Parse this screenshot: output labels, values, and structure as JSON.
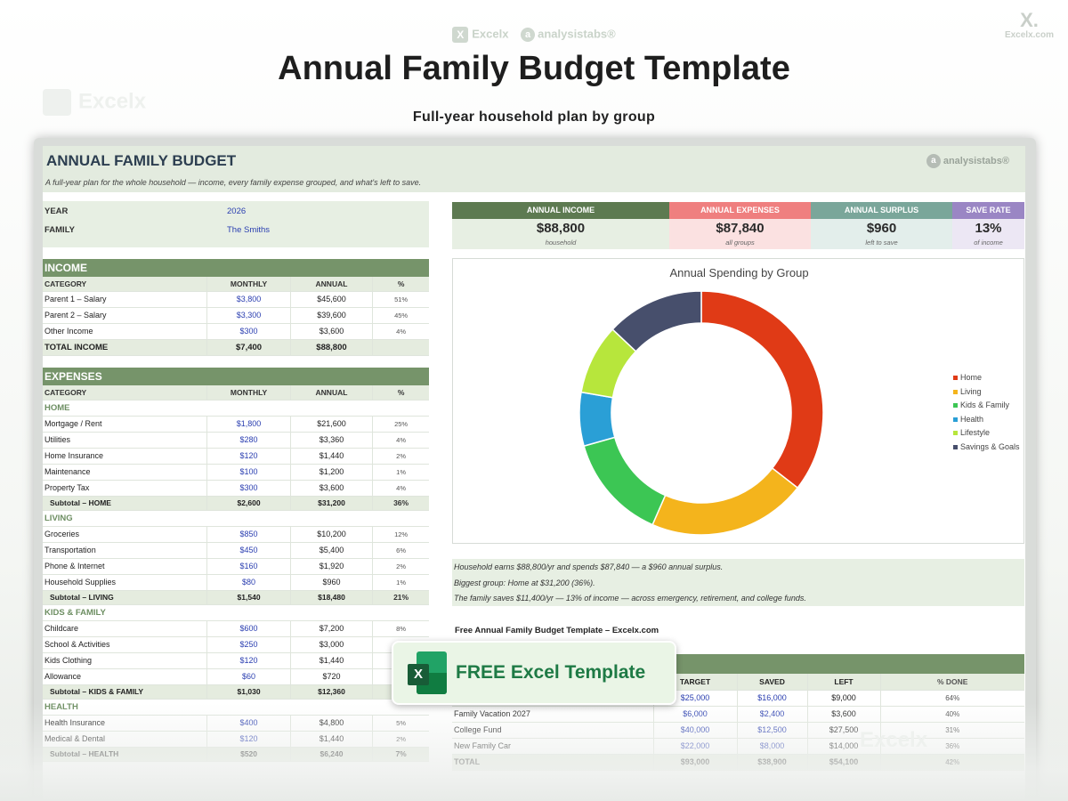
{
  "brand_top": {
    "excelx": "Excelx",
    "analysistabs": "analysistabs®",
    "x_glyph": "X"
  },
  "corner_logo": {
    "mark": "X.",
    "site": "Excelx.com"
  },
  "watermark": "Excelx",
  "title": "Annual Family Budget Template",
  "subtitle": "Full-year household plan by group",
  "sheet": {
    "title": "ANNUAL FAMILY BUDGET",
    "description": "A full-year plan for the whole household — income, every family expense grouped, and what's left to save.",
    "brand": "analysistabs®",
    "info": [
      {
        "label": "YEAR",
        "value": "2026"
      },
      {
        "label": "FAMILY",
        "value": "The Smiths"
      }
    ],
    "income": {
      "heading": "INCOME",
      "columns": [
        "CATEGORY",
        "MONTHLY",
        "ANNUAL",
        "%"
      ],
      "rows": [
        {
          "cat": "Parent 1 – Salary",
          "monthly": "$3,800",
          "annual": "$45,600",
          "pct": "51%"
        },
        {
          "cat": "Parent 2 – Salary",
          "monthly": "$3,300",
          "annual": "$39,600",
          "pct": "45%"
        },
        {
          "cat": "Other Income",
          "monthly": "$300",
          "annual": "$3,600",
          "pct": "4%"
        }
      ],
      "total": {
        "cat": "TOTAL INCOME",
        "monthly": "$7,400",
        "annual": "$88,800",
        "pct": ""
      }
    },
    "expenses": {
      "heading": "EXPENSES",
      "columns": [
        "CATEGORY",
        "MONTHLY",
        "ANNUAL",
        "%"
      ],
      "groups": [
        {
          "name": "HOME",
          "rows": [
            {
              "cat": "Mortgage / Rent",
              "monthly": "$1,800",
              "annual": "$21,600",
              "pct": "25%"
            },
            {
              "cat": "Utilities",
              "monthly": "$280",
              "annual": "$3,360",
              "pct": "4%"
            },
            {
              "cat": "Home Insurance",
              "monthly": "$120",
              "annual": "$1,440",
              "pct": "2%"
            },
            {
              "cat": "Maintenance",
              "monthly": "$100",
              "annual": "$1,200",
              "pct": "1%"
            },
            {
              "cat": "Property Tax",
              "monthly": "$300",
              "annual": "$3,600",
              "pct": "4%"
            }
          ],
          "subtotal": {
            "cat": "Subtotal – HOME",
            "monthly": "$2,600",
            "annual": "$31,200",
            "pct": "36%"
          }
        },
        {
          "name": "LIVING",
          "rows": [
            {
              "cat": "Groceries",
              "monthly": "$850",
              "annual": "$10,200",
              "pct": "12%"
            },
            {
              "cat": "Transportation",
              "monthly": "$450",
              "annual": "$5,400",
              "pct": "6%"
            },
            {
              "cat": "Phone & Internet",
              "monthly": "$160",
              "annual": "$1,920",
              "pct": "2%"
            },
            {
              "cat": "Household Supplies",
              "monthly": "$80",
              "annual": "$960",
              "pct": "1%"
            }
          ],
          "subtotal": {
            "cat": "Subtotal – LIVING",
            "monthly": "$1,540",
            "annual": "$18,480",
            "pct": "21%"
          }
        },
        {
          "name": "KIDS & FAMILY",
          "rows": [
            {
              "cat": "Childcare",
              "monthly": "$600",
              "annual": "$7,200",
              "pct": "8%"
            },
            {
              "cat": "School & Activities",
              "monthly": "$250",
              "annual": "$3,000",
              "pct": ""
            },
            {
              "cat": "Kids Clothing",
              "monthly": "$120",
              "annual": "$1,440",
              "pct": ""
            },
            {
              "cat": "Allowance",
              "monthly": "$60",
              "annual": "$720",
              "pct": ""
            }
          ],
          "subtotal": {
            "cat": "Subtotal – KIDS & FAMILY",
            "monthly": "$1,030",
            "annual": "$12,360",
            "pct": ""
          }
        },
        {
          "name": "HEALTH",
          "rows": [
            {
              "cat": "Health Insurance",
              "monthly": "$400",
              "annual": "$4,800",
              "pct": "5%"
            },
            {
              "cat": "Medical & Dental",
              "monthly": "$120",
              "annual": "$1,440",
              "pct": "2%"
            }
          ],
          "subtotal": {
            "cat": "Subtotal – HEALTH",
            "monthly": "$520",
            "annual": "$6,240",
            "pct": "7%"
          }
        }
      ]
    },
    "kpis": [
      {
        "label": "ANNUAL INCOME",
        "value": "$88,800",
        "sub": "household",
        "head_color": "#5d7a51",
        "body_color": "#e7efe3"
      },
      {
        "label": "ANNUAL EXPENSES",
        "value": "$87,840",
        "sub": "all groups",
        "head_color": "#ef7f7f",
        "body_color": "#fbe1e1"
      },
      {
        "label": "ANNUAL SURPLUS",
        "value": "$960",
        "sub": "left to save",
        "head_color": "#7aa69a",
        "body_color": "#e3eeeb"
      },
      {
        "label": "SAVE RATE",
        "value": "13%",
        "sub": "of income",
        "head_color": "#9a86c4",
        "body_color": "#ece7f4"
      }
    ],
    "insights": [
      "Household earns $88,800/yr and spends $87,840 — a $960 annual surplus.",
      "Biggest group: Home at $31,200 (36%).",
      "The family saves $11,400/yr — 13% of income — across emergency, retirement, and college funds."
    ],
    "promo_line": "Free Annual Family Budget Template – Excelx.com",
    "goals": {
      "columns": [
        "",
        "TARGET",
        "SAVED",
        "LEFT",
        "% DONE"
      ],
      "rows": [
        {
          "goal": "",
          "target": "$25,000",
          "saved": "$16,000",
          "left": "$9,000",
          "pct": "64%"
        },
        {
          "goal": "Family Vacation 2027",
          "target": "$6,000",
          "saved": "$2,400",
          "left": "$3,600",
          "pct": "40%"
        },
        {
          "goal": "College Fund",
          "target": "$40,000",
          "saved": "$12,500",
          "left": "$27,500",
          "pct": "31%"
        },
        {
          "goal": "New Family Car",
          "target": "$22,000",
          "saved": "$8,000",
          "left": "$14,000",
          "pct": "36%"
        }
      ],
      "total": {
        "goal": "TOTAL",
        "target": "$93,000",
        "saved": "$38,900",
        "left": "$54,100",
        "pct": "42%"
      }
    }
  },
  "badge": {
    "label": "FREE Excel Template",
    "icon_letter": "X"
  },
  "chart_data": {
    "type": "pie",
    "title": "Annual Spending by Group",
    "categories": [
      "Home",
      "Living",
      "Kids & Family",
      "Health",
      "Lifestyle",
      "Savings & Goals"
    ],
    "values": [
      31200,
      18480,
      12360,
      6240,
      8160,
      11400
    ],
    "colors": [
      "#e03a16",
      "#f4b41c",
      "#3cc654",
      "#2a9fd6",
      "#b7e63c",
      "#474f6c"
    ],
    "legend": "right",
    "donut": true
  }
}
